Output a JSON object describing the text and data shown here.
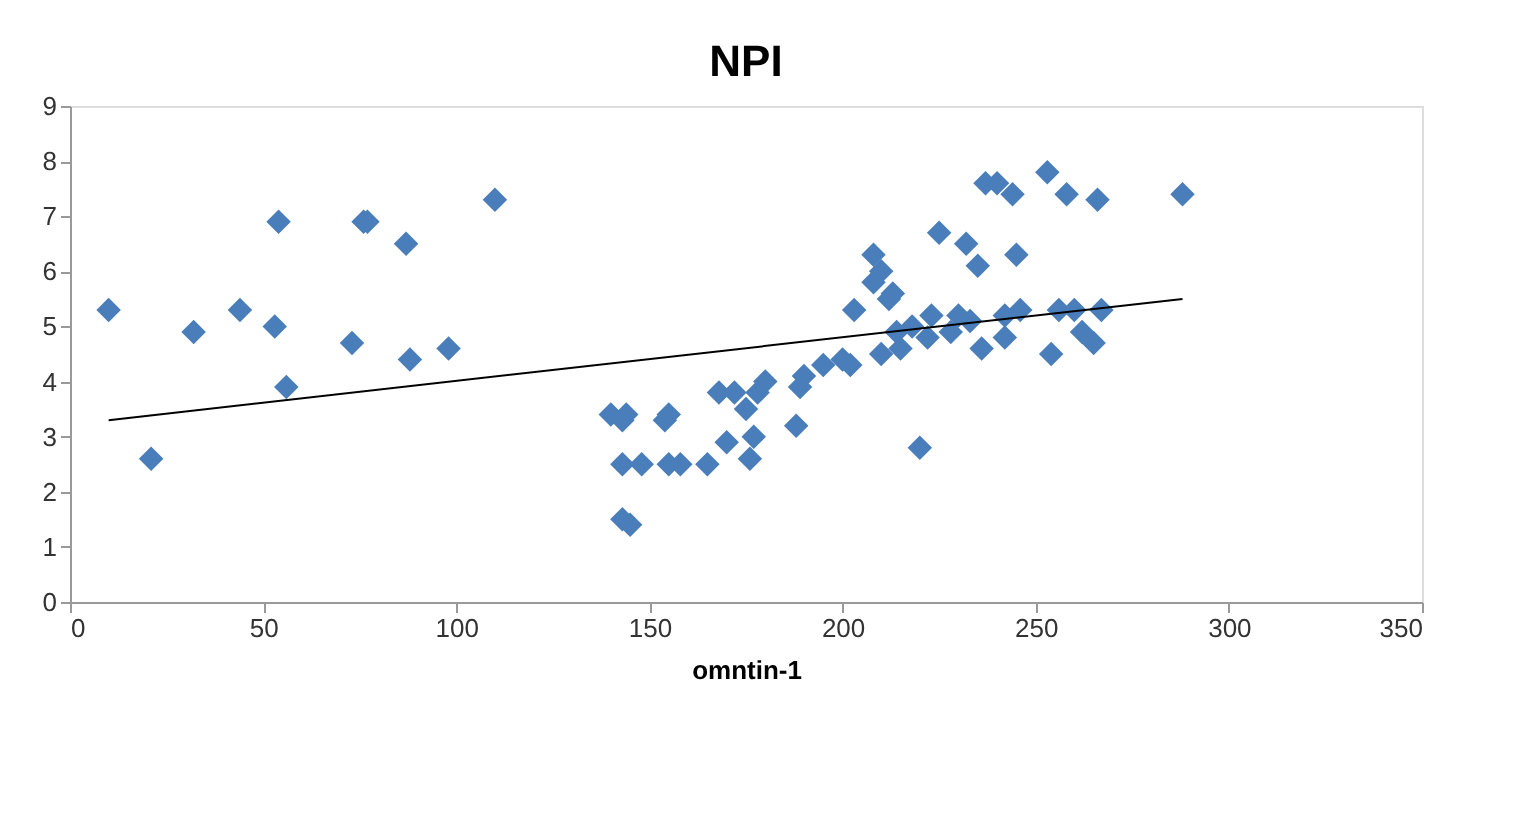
{
  "chart_data": {
    "type": "scatter",
    "title": "NPI",
    "xlabel": "omntin-1",
    "xlim": [
      0,
      350
    ],
    "ylim": [
      0,
      9
    ],
    "xticks": [
      0,
      50,
      100,
      150,
      200,
      250,
      300,
      350
    ],
    "yticks": [
      0,
      1,
      2,
      3,
      4,
      5,
      6,
      7,
      8,
      9
    ],
    "grid": false,
    "marker": "diamond",
    "series": [
      {
        "color": "#4a7ebb",
        "x": [
          10,
          21,
          32,
          44,
          53,
          54,
          56,
          73,
          76,
          77,
          87,
          88,
          98,
          110,
          140,
          143,
          144,
          143,
          143,
          145,
          148,
          154,
          155,
          155,
          158,
          165,
          168,
          170,
          172,
          175,
          176,
          177,
          178,
          180,
          188,
          189,
          190,
          195,
          200,
          202,
          203,
          208,
          208,
          210,
          210,
          212,
          213,
          214,
          215,
          218,
          220,
          222,
          223,
          225,
          228,
          230,
          232,
          233,
          235,
          236,
          237,
          240,
          242,
          242,
          244,
          245,
          246,
          253,
          254,
          256,
          258,
          260,
          262,
          265,
          266,
          267,
          288
        ],
        "values": [
          5.3,
          2.6,
          4.9,
          5.3,
          5.0,
          6.9,
          3.9,
          4.7,
          6.9,
          6.9,
          6.5,
          4.4,
          4.6,
          7.3,
          3.4,
          3.3,
          3.4,
          2.5,
          1.5,
          1.4,
          2.5,
          3.3,
          3.4,
          2.5,
          2.5,
          2.5,
          3.8,
          2.9,
          3.8,
          3.5,
          2.6,
          3.0,
          3.8,
          4.0,
          3.2,
          3.9,
          4.1,
          4.3,
          4.4,
          4.3,
          5.3,
          6.3,
          5.8,
          6.0,
          4.5,
          5.5,
          5.6,
          4.9,
          4.6,
          5.0,
          2.8,
          4.8,
          5.2,
          6.7,
          4.9,
          5.2,
          6.5,
          5.1,
          6.1,
          4.6,
          7.6,
          7.6,
          5.2,
          4.8,
          7.4,
          6.3,
          5.3,
          7.8,
          4.5,
          5.3,
          7.4,
          5.3,
          4.9,
          4.7,
          7.3,
          5.3,
          7.4
        ]
      },
      {
        "type": "line",
        "color": "#000000",
        "marker": "none",
        "line_style": "solid",
        "x": [
          10,
          288
        ],
        "values": [
          3.3,
          5.5
        ]
      }
    ]
  }
}
